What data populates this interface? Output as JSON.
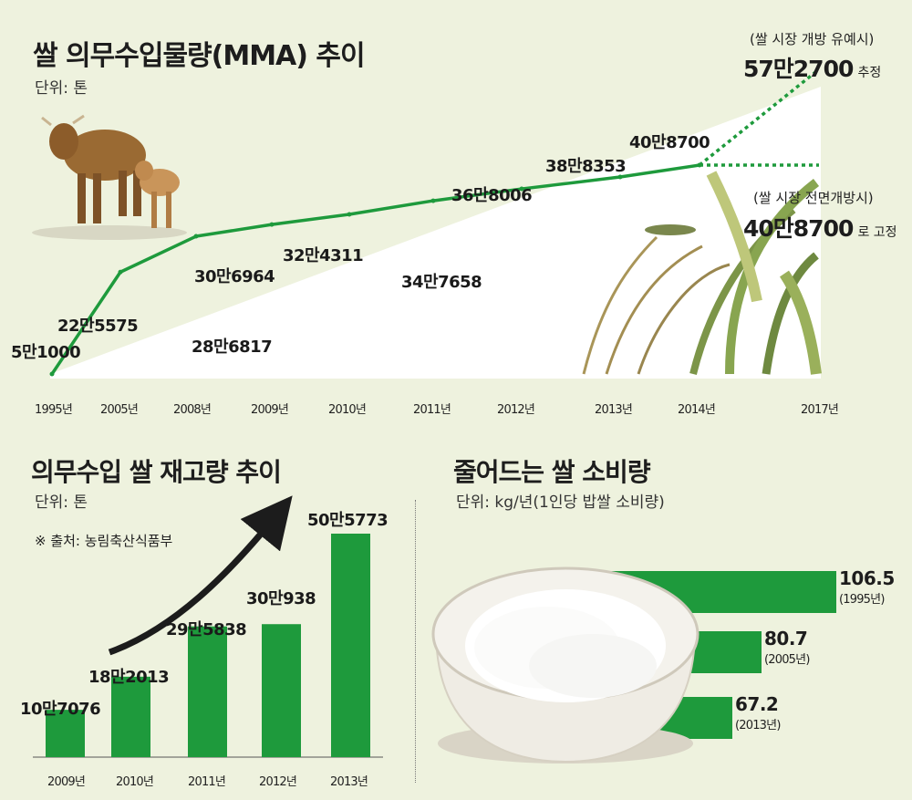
{
  "line_chart": {
    "title": "쌀 의무수입물량(MMA) 추이",
    "unit": "단위: 톤",
    "open_note": "(쌀 시장 개방 유예시)",
    "open_value": "57만2700",
    "open_suffix": "추정",
    "full_note": "(쌀 시장 전면개방시)",
    "full_value": "40만8700",
    "full_suffix": "로 고정",
    "point_labels": [
      "5만1000",
      "22만5575",
      "28만6817",
      "30만6964",
      "32만4311",
      "34만7658",
      "36만8006",
      "38만8353",
      "40만8700"
    ],
    "x_labels": [
      "1995년",
      "2005년",
      "2008년",
      "2009년",
      "2010년",
      "2011년",
      "2012년",
      "2013년",
      "2014년",
      "2017년"
    ]
  },
  "stock_chart": {
    "title": "의무수입 쌀 재고량 추이",
    "unit": "단위: 톤",
    "source": "※ 출처:  농림축산식품부",
    "bar_labels": [
      "10만7076",
      "18만2013",
      "29만5838",
      "30만938",
      "50만5773"
    ],
    "x_labels": [
      "2009년",
      "2010년",
      "2011년",
      "2012년",
      "2013년"
    ]
  },
  "consumption_chart": {
    "title": "줄어드는 쌀 소비량",
    "unit": "단위:  kg/년(1인당 밥쌀 소비량)",
    "bar_values": [
      "106.5",
      "80.7",
      "67.2"
    ],
    "bar_years": [
      "(1995년)",
      "(2005년)",
      "(2013년)"
    ]
  },
  "chart_data": [
    {
      "type": "line",
      "title": "쌀 의무수입물량(MMA) 추이",
      "ylabel": "단위: 톤",
      "x": [
        "1995년",
        "2005년",
        "2008년",
        "2009년",
        "2010년",
        "2011년",
        "2012년",
        "2013년",
        "2014년",
        "2017년"
      ],
      "series": [
        {
          "values": [
            51000,
            225575,
            286817,
            306964,
            324311,
            347658,
            368006,
            388353,
            408700,
            null
          ]
        },
        {
          "name": "쌀 시장 개방 유예시",
          "values": [
            null,
            null,
            null,
            null,
            null,
            null,
            null,
            null,
            408700,
            572700
          ]
        },
        {
          "name": "쌀 시장 전면개방시",
          "values": [
            null,
            null,
            null,
            null,
            null,
            null,
            null,
            null,
            408700,
            408700
          ]
        }
      ]
    },
    {
      "type": "bar",
      "title": "의무수입 쌀 재고량 추이",
      "ylabel": "단위: 톤",
      "categories": [
        "2009년",
        "2010년",
        "2011년",
        "2012년",
        "2013년"
      ],
      "values": [
        107076,
        182013,
        295838,
        300938,
        505773
      ]
    },
    {
      "type": "bar",
      "orientation": "horizontal",
      "title": "줄어드는 쌀 소비량",
      "ylabel": "단위: kg/년(1인당 밥쌀 소비량)",
      "categories": [
        "1995년",
        "2005년",
        "2013년"
      ],
      "values": [
        106.5,
        80.7,
        67.2
      ]
    }
  ],
  "colors": {
    "line": "#1e9a3c",
    "bar": "#1e9a3c",
    "background": "#eef2de",
    "arrow": "#1c1c1c"
  }
}
